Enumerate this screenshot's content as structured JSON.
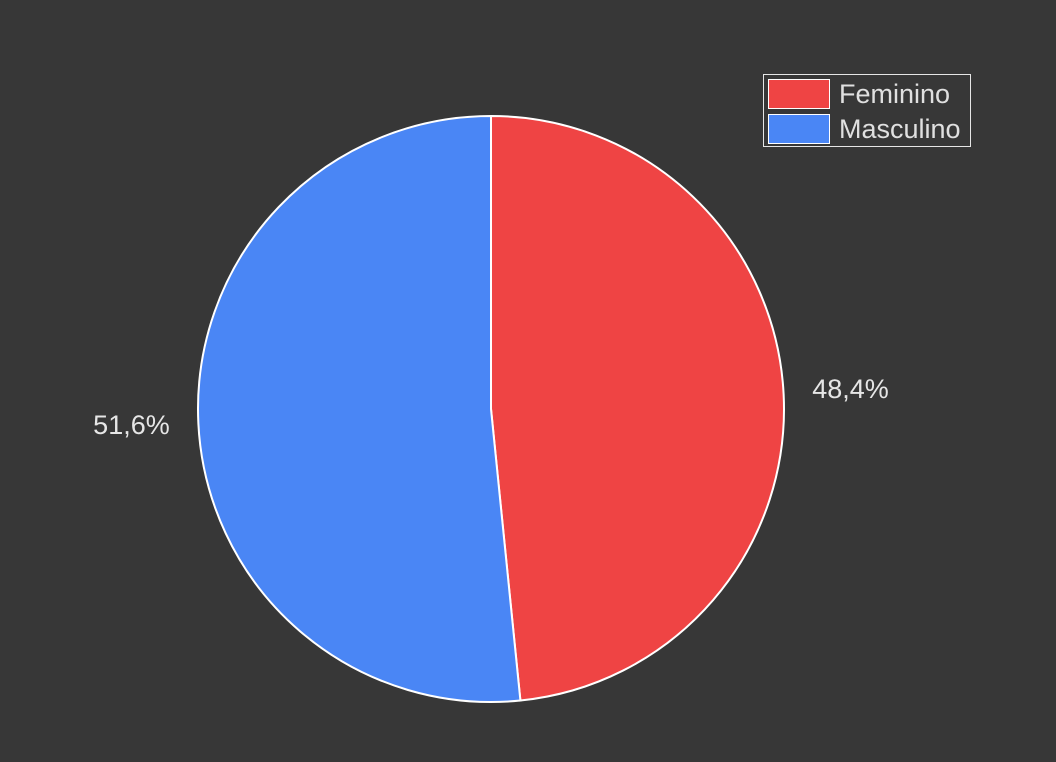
{
  "chart_data": {
    "type": "pie",
    "categories": [
      "Feminino",
      "Masculino"
    ],
    "values": [
      48.4,
      51.6
    ],
    "value_labels": [
      "48,4%",
      "51,6%"
    ],
    "colors": [
      "#ef4444",
      "#4a86f5"
    ],
    "start": "12 o'clock, clockwise",
    "legend": {
      "placement": "top-right",
      "entries": [
        "Feminino",
        "Masculino"
      ]
    }
  }
}
